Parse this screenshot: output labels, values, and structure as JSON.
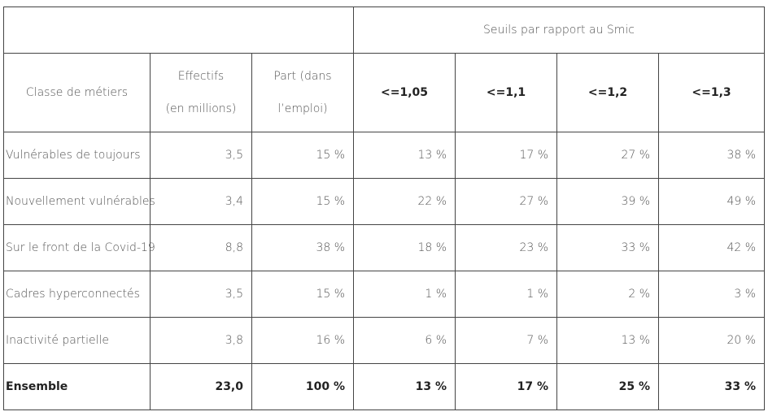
{
  "header": {
    "thresholds_title": "Seuils par rapport au Smic",
    "col_class": "Classe de métiers",
    "col_effectifs_line1": "Effectifs",
    "col_effectifs_line2": "(en millions)",
    "col_part_line1": "Part (dans",
    "col_part_line2": "l’emploi)",
    "thresholds": [
      "<=1,05",
      "<=1,1",
      "<=1,2",
      "<=1,3"
    ]
  },
  "rows": [
    {
      "label": "Vulnérables de toujours",
      "effectifs": "3,5",
      "part": "15 %",
      "t1": "13 %",
      "t2": "17 %",
      "t3": "27 %",
      "t4": "38 %"
    },
    {
      "label": "Nouvellement vulnérables",
      "effectifs": "3,4",
      "part": "15 %",
      "t1": "22 %",
      "t2": "27 %",
      "t3": "39 %",
      "t4": "49 %"
    },
    {
      "label": "Sur le front de la Covid-19",
      "effectifs": "8,8",
      "part": "38 %",
      "t1": "18 %",
      "t2": "23 %",
      "t3": "33 %",
      "t4": "42 %"
    },
    {
      "label": "Cadres hyperconnectés",
      "effectifs": "3,5",
      "part": "15 %",
      "t1": "1 %",
      "t2": "1 %",
      "t3": "2 %",
      "t4": "3 %"
    },
    {
      "label": "Inactivité partielle",
      "effectifs": "3,8",
      "part": "16 %",
      "t1": "6 %",
      "t2": "7 %",
      "t3": "13 %",
      "t4": "20 %"
    },
    {
      "label": "Ensemble",
      "effectifs": "23,0",
      "part": "100 %",
      "t1": "13 %",
      "t2": "17 %",
      "t3": "25 %",
      "t4": "33 %"
    }
  ]
}
